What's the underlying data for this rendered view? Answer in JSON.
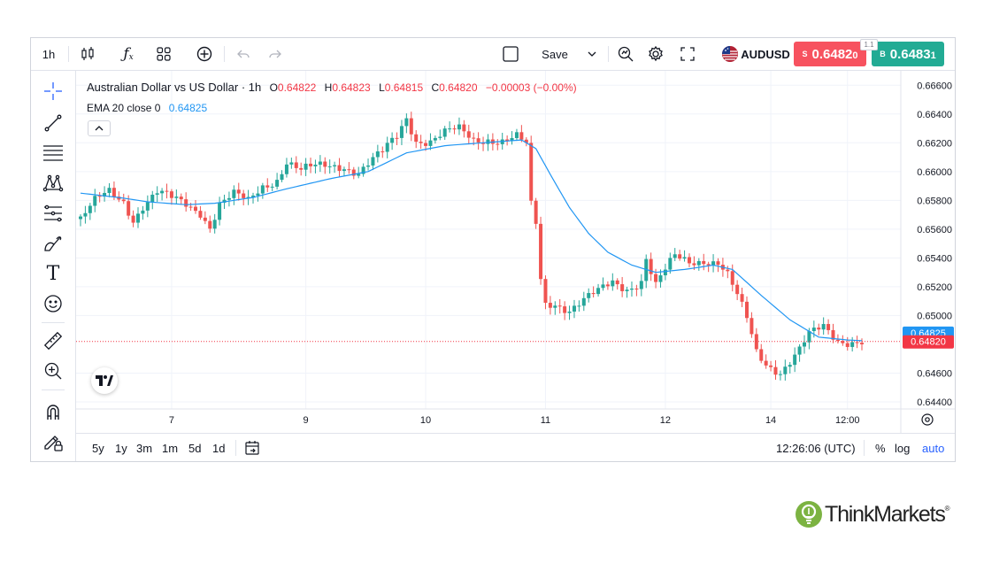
{
  "toolbar": {
    "interval": "1h",
    "save_label": "Save",
    "symbol": "AUDUSD",
    "sell_label": "S",
    "sell_price": "0.6482",
    "sell_price_frac": "0",
    "buy_label": "B",
    "buy_price": "0.6483",
    "buy_price_frac": "1",
    "spread": "1.1",
    "icons": [
      "bar-style-icon",
      "indicators-icon",
      "layouts-icon",
      "add-icon",
      "undo-icon",
      "redo-icon",
      "layout-toggle-icon",
      "chevron-down-icon",
      "quick-search-icon",
      "settings-icon",
      "fullscreen-icon",
      "flag-icon"
    ]
  },
  "left_toolbar": {
    "icons": [
      "crosshair-icon",
      "trend-line-icon",
      "fib-retracement-icon",
      "pattern-icon",
      "prediction-icon",
      "brush-icon",
      "text-icon",
      "emoji-icon",
      "ruler-icon",
      "zoom-in-icon",
      "magnet-icon",
      "lock-drawing-icon"
    ]
  },
  "legend": {
    "title": "Australian Dollar vs US Dollar · 1h",
    "o_label": "O",
    "o_value": "0.64822",
    "h_label": "H",
    "h_value": "0.64823",
    "l_label": "L",
    "l_value": "0.64815",
    "c_label": "C",
    "c_value": "0.64820",
    "change": "−0.00003 (−0.00%)",
    "ema_label": "EMA 20 close 0",
    "ema_value": "0.64825"
  },
  "price_axis": {
    "labels": [
      "0.66600",
      "0.66400",
      "0.66200",
      "0.66000",
      "0.65800",
      "0.65600",
      "0.65400",
      "0.65200",
      "0.65000",
      "0.64600",
      "0.64400"
    ],
    "ema_tag": "0.64825",
    "price_tag": "0.64820"
  },
  "time_axis": {
    "labels": [
      "7",
      "9",
      "10",
      "11",
      "12",
      "14",
      "12:00"
    ]
  },
  "bottom_bar": {
    "ranges": [
      "5y",
      "1y",
      "3m",
      "1m",
      "5d",
      "1d"
    ],
    "time": "12:26:06 (UTC)",
    "percent": "%",
    "log": "log",
    "auto": "auto"
  },
  "brand": {
    "name": "ThinkMarkets"
  },
  "colors": {
    "up": "#26a69a",
    "down": "#ef5350",
    "ema": "#2196f3",
    "ema_tag": "#2196f3",
    "price_tag": "#f23645",
    "auto": "#2962ff",
    "brand_green": "#7cb342"
  },
  "chart_data": {
    "type": "candlestick",
    "title": "Australian Dollar vs US Dollar · 1h",
    "ylim": [
      0.644,
      0.667
    ],
    "y_ticks": [
      0.666,
      0.664,
      0.662,
      0.66,
      0.658,
      0.656,
      0.654,
      0.652,
      0.65,
      0.646,
      0.644
    ],
    "x_tick_labels": [
      "7",
      "9",
      "10",
      "11",
      "12",
      "14",
      "12:00"
    ],
    "current_price": 0.6482,
    "ema_current": 0.64825,
    "price_path": [
      [
        0,
        0.6567
      ],
      [
        3,
        0.6578
      ],
      [
        6,
        0.6585
      ],
      [
        9,
        0.658
      ],
      [
        11,
        0.6568
      ],
      [
        13,
        0.6577
      ],
      [
        16,
        0.6585
      ],
      [
        19,
        0.658
      ],
      [
        22,
        0.6577
      ],
      [
        25,
        0.6573
      ],
      [
        27,
        0.6563
      ],
      [
        29,
        0.6578
      ],
      [
        32,
        0.6583
      ],
      [
        35,
        0.6578
      ],
      [
        38,
        0.659
      ],
      [
        41,
        0.6596
      ],
      [
        43,
        0.6608
      ],
      [
        46,
        0.66
      ],
      [
        49,
        0.6602
      ],
      [
        52,
        0.6604
      ],
      [
        55,
        0.6605
      ],
      [
        58,
        0.66
      ],
      [
        60,
        0.6605
      ],
      [
        63,
        0.6612
      ],
      [
        66,
        0.6624
      ],
      [
        68,
        0.6638
      ],
      [
        70,
        0.6623
      ],
      [
        73,
        0.6622
      ],
      [
        76,
        0.6626
      ],
      [
        79,
        0.6628
      ],
      [
        82,
        0.6622
      ],
      [
        85,
        0.6624
      ],
      [
        88,
        0.6622
      ],
      [
        91,
        0.6623
      ],
      [
        93,
        0.6617
      ],
      [
        94,
        0.6575
      ],
      [
        95,
        0.6563
      ],
      [
        96,
        0.6525
      ],
      [
        97,
        0.6508
      ],
      [
        99,
        0.651
      ],
      [
        102,
        0.6505
      ],
      [
        105,
        0.651
      ],
      [
        108,
        0.6515
      ],
      [
        111,
        0.6523
      ],
      [
        114,
        0.652
      ],
      [
        117,
        0.6525
      ],
      [
        118,
        0.654
      ],
      [
        120,
        0.652
      ],
      [
        122,
        0.653
      ],
      [
        124,
        0.654
      ],
      [
        127,
        0.6538
      ],
      [
        130,
        0.654
      ],
      [
        133,
        0.6537
      ],
      [
        135,
        0.6527
      ],
      [
        137,
        0.6512
      ],
      [
        139,
        0.6497
      ],
      [
        141,
        0.6475
      ],
      [
        143,
        0.6468
      ],
      [
        146,
        0.6462
      ],
      [
        148,
        0.6468
      ],
      [
        150,
        0.6475
      ],
      [
        152,
        0.6485
      ],
      [
        155,
        0.6492
      ],
      [
        158,
        0.6484
      ],
      [
        161,
        0.6483
      ],
      [
        163,
        0.6482
      ]
    ],
    "ema_path": [
      [
        0,
        0.6585
      ],
      [
        8,
        0.6582
      ],
      [
        14,
        0.6579
      ],
      [
        22,
        0.6577
      ],
      [
        28,
        0.6578
      ],
      [
        36,
        0.6582
      ],
      [
        43,
        0.6588
      ],
      [
        52,
        0.6595
      ],
      [
        60,
        0.66
      ],
      [
        68,
        0.6613
      ],
      [
        76,
        0.6618
      ],
      [
        84,
        0.662
      ],
      [
        92,
        0.6622
      ],
      [
        95,
        0.6616
      ],
      [
        98,
        0.6598
      ],
      [
        102,
        0.6575
      ],
      [
        106,
        0.6557
      ],
      [
        110,
        0.6544
      ],
      [
        115,
        0.6535
      ],
      [
        120,
        0.653
      ],
      [
        126,
        0.6532
      ],
      [
        132,
        0.6535
      ],
      [
        136,
        0.6532
      ],
      [
        142,
        0.6514
      ],
      [
        148,
        0.6497
      ],
      [
        154,
        0.6485
      ],
      [
        160,
        0.6483
      ],
      [
        163,
        0.64825
      ]
    ]
  }
}
